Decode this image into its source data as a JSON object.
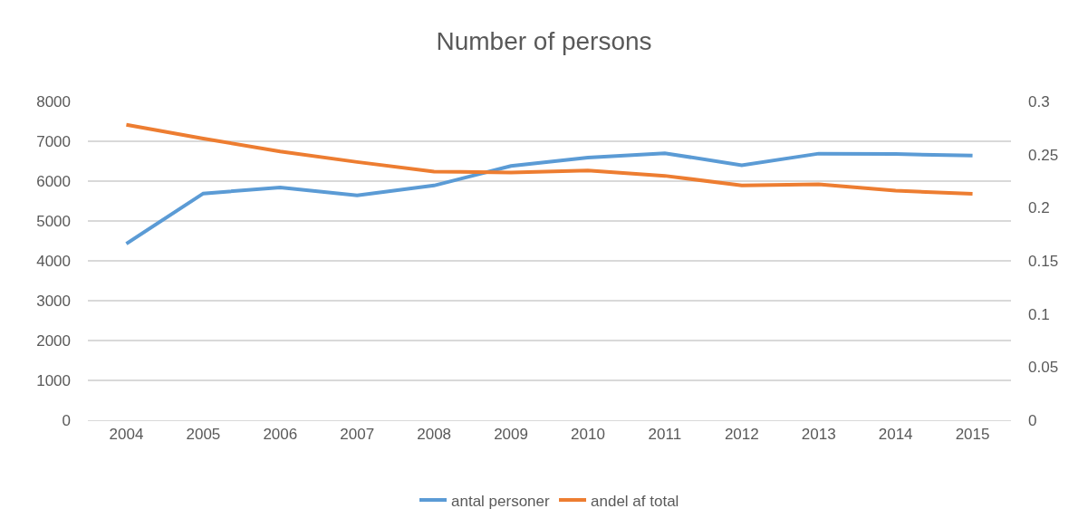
{
  "chart_data": {
    "type": "line",
    "title": "Number of persons",
    "categories": [
      "2004",
      "2005",
      "2006",
      "2007",
      "2008",
      "2009",
      "2010",
      "2011",
      "2012",
      "2013",
      "2014",
      "2015"
    ],
    "series": [
      {
        "name": "antal personer",
        "color": "#5b9bd5",
        "values": [
          4430,
          5690,
          5840,
          5640,
          5890,
          6380,
          6590,
          6700,
          6400,
          6690,
          6680,
          6640
        ]
      },
      {
        "name": "andel af total",
        "color": "#ed7d31",
        "axis": "y2",
        "values": [
          0.278,
          0.265,
          0.253,
          0.243,
          0.234,
          0.233,
          0.235,
          0.23,
          0.221,
          0.222,
          0.216,
          0.213
        ]
      }
    ],
    "ylim": [
      0,
      8000
    ],
    "yticks": [
      0,
      1000,
      2000,
      3000,
      4000,
      5000,
      6000,
      7000,
      8000
    ],
    "y2lim": [
      0,
      0.3
    ],
    "y2ticks": [
      0,
      0.05,
      0.1,
      0.15,
      0.2,
      0.25,
      0.3
    ],
    "grid": "y",
    "legend": "bottom",
    "marker": "none",
    "line_style": "solid"
  }
}
